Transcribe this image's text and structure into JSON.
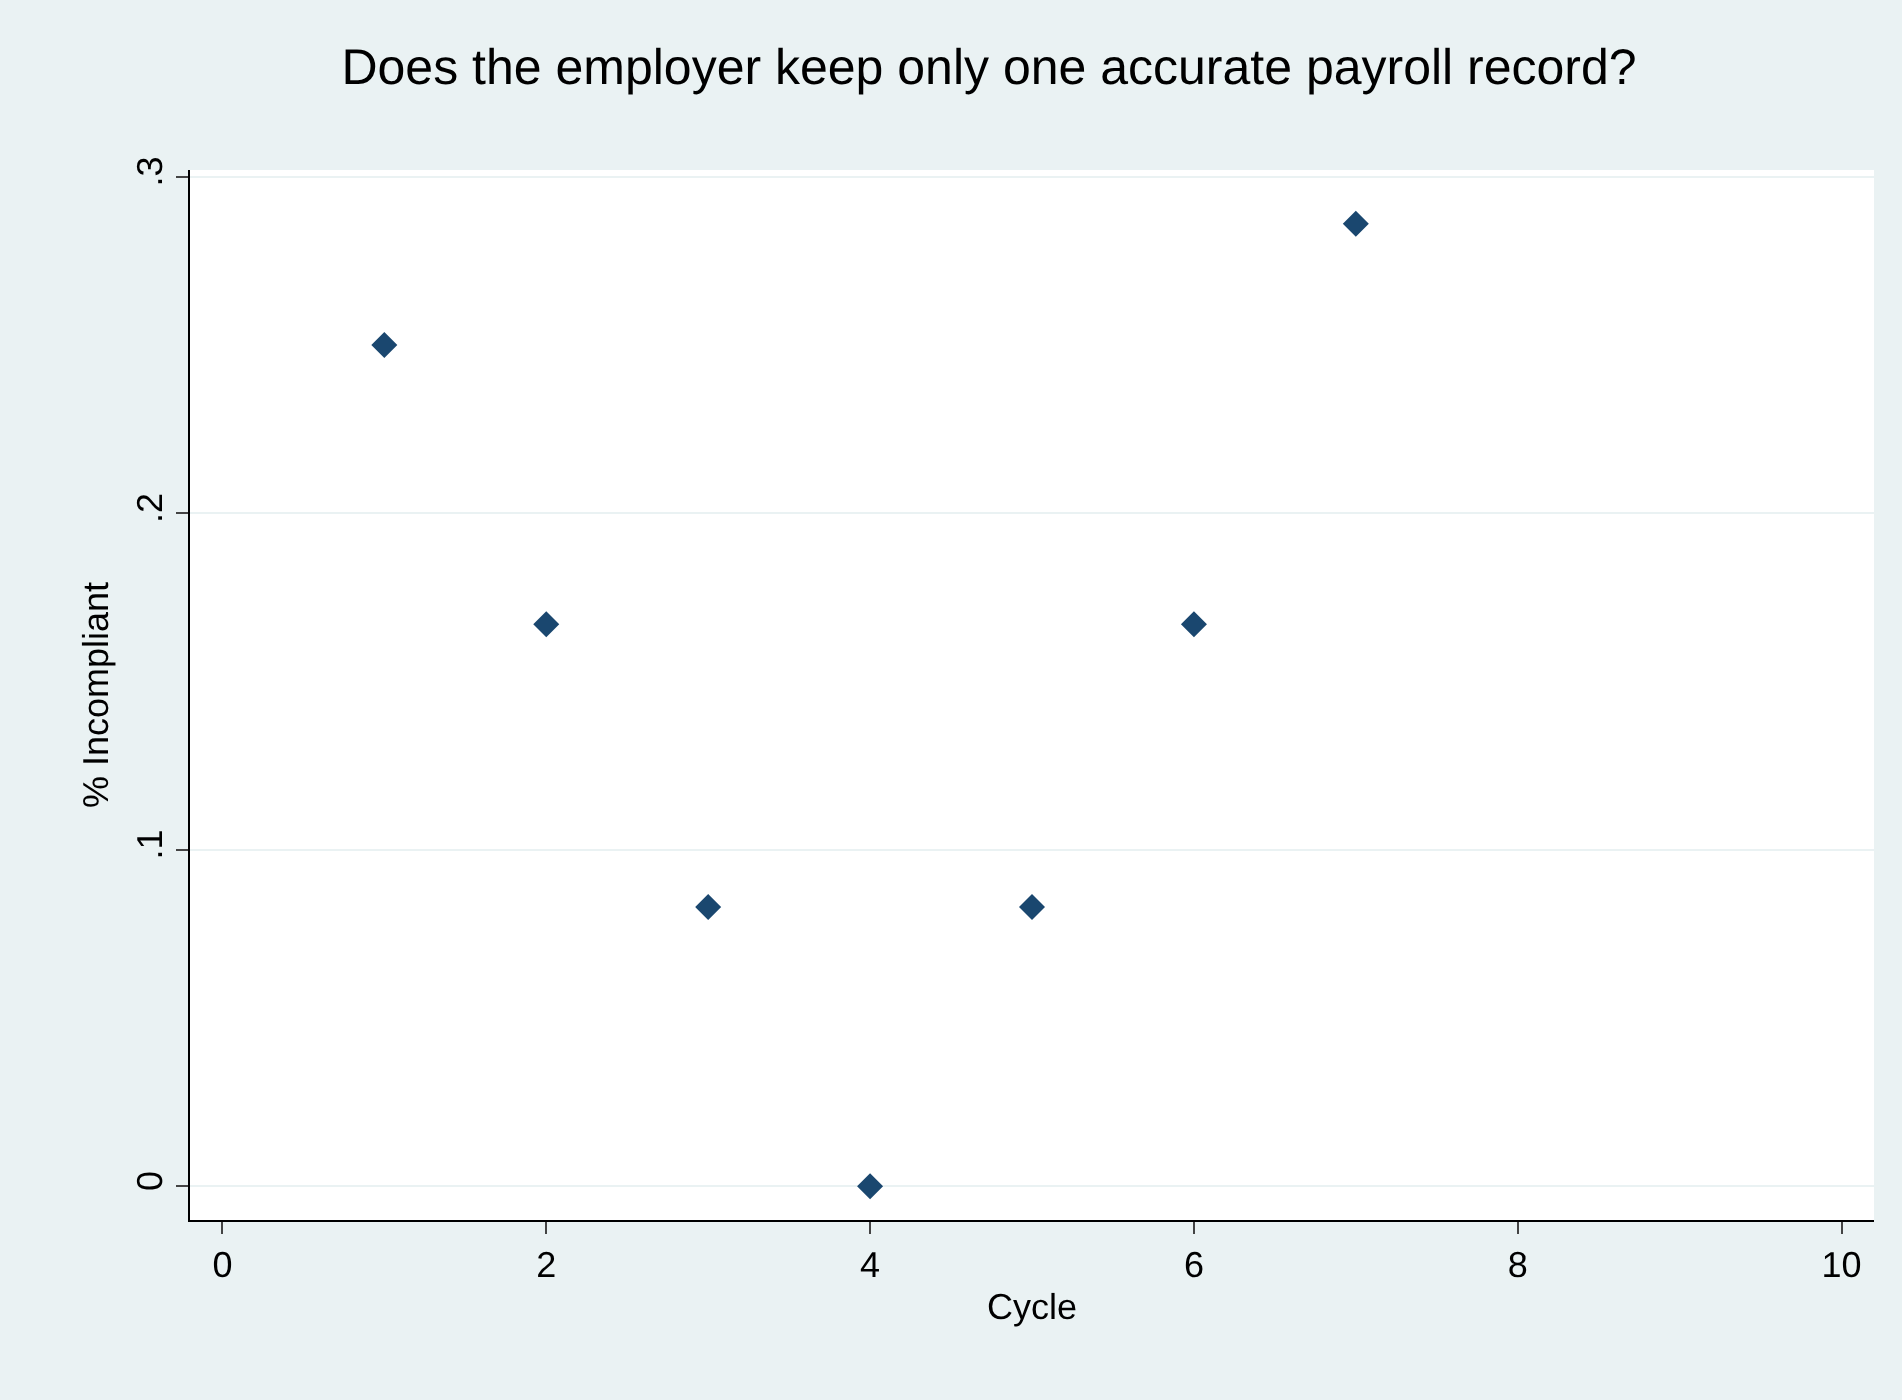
{
  "chart_data": {
    "type": "scatter",
    "title": "Does the employer keep only one accurate payroll record?",
    "xlabel": "Cycle",
    "ylabel": "% Incompliant",
    "x": [
      1,
      2,
      3,
      4,
      5,
      6,
      7
    ],
    "series": [
      {
        "color": "#1a476f",
        "values": [
          0.25,
          0.167,
          0.083,
          0,
          0.083,
          0.167,
          0.286
        ]
      }
    ],
    "xlim": [
      -0.2,
      10.2
    ],
    "xticks": [
      0,
      2,
      4,
      6,
      8,
      10
    ],
    "ylim": [
      -0.01,
      0.302
    ],
    "yticks": [
      0,
      {
        "value": 0.1,
        "label": ".1"
      },
      {
        "value": 0.2,
        "label": ".2"
      },
      {
        "value": 0.3,
        "label": ".3"
      }
    ],
    "grid": "y",
    "marker": "diamond"
  }
}
